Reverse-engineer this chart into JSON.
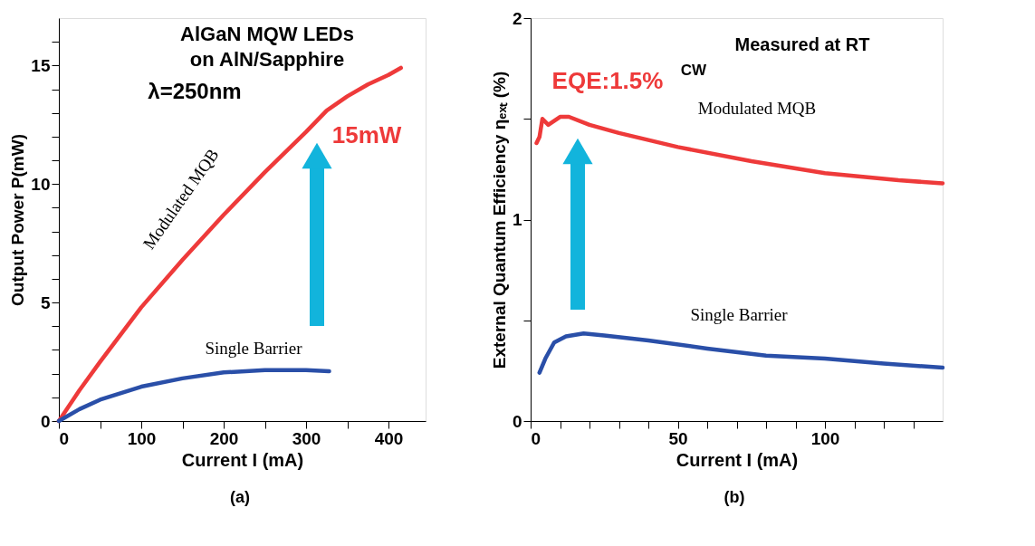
{
  "chart_data": [
    {
      "type": "line",
      "xlabel": "Current I  (mA)",
      "ylabel": "Output Power P(mW)",
      "xlim": [
        0,
        445
      ],
      "ylim": [
        0,
        17
      ],
      "xticks": [
        0,
        {
          "value": 50,
          "label": null
        },
        100,
        {
          "value": 150,
          "label": null
        },
        200,
        {
          "value": 250,
          "label": null
        },
        300,
        {
          "value": 350,
          "label": null
        },
        400
      ],
      "yticks": [
        0,
        {
          "value": 1,
          "label": null
        },
        {
          "value": 2,
          "label": null
        },
        {
          "value": 3,
          "label": null
        },
        {
          "value": 4,
          "label": null
        },
        5,
        {
          "value": 6,
          "label": null
        },
        {
          "value": 7,
          "label": null
        },
        {
          "value": 8,
          "label": null
        },
        {
          "value": 9,
          "label": null
        },
        10,
        {
          "value": 11,
          "label": null
        },
        {
          "value": 12,
          "label": null
        },
        {
          "value": 13,
          "label": null
        },
        {
          "value": 14,
          "label": null
        },
        15,
        {
          "value": 16,
          "label": null
        }
      ],
      "grid": false,
      "legend": false,
      "marker": "none",
      "line_style": "solid",
      "series": [
        {
          "name": "Modulated MQB",
          "color": "#ee3a3a",
          "x": [
            0,
            25,
            50,
            100,
            150,
            200,
            250,
            300,
            325,
            350,
            375,
            400,
            415
          ],
          "values": [
            0,
            1.3,
            2.5,
            4.8,
            6.8,
            8.7,
            10.5,
            12.2,
            13.1,
            13.7,
            14.2,
            14.6,
            14.9
          ]
        },
        {
          "name": "Single Barrier",
          "color": "#2a4fa8",
          "x": [
            0,
            25,
            50,
            100,
            150,
            200,
            250,
            300,
            328
          ],
          "values": [
            0,
            0.5,
            0.9,
            1.45,
            1.8,
            2.05,
            2.15,
            2.15,
            2.1
          ]
        }
      ],
      "annotations": [
        "AlGaN MQW LEDs",
        "on AlN/Sapphire",
        "λ=250nm",
        "15mW",
        "(a)"
      ]
    },
    {
      "type": "line",
      "xlabel": "Current I (mA)",
      "ylabel": "External Quantum Efficiency ηₑₓₜ (%)",
      "xlim": [
        0,
        140
      ],
      "ylim": [
        0,
        2
      ],
      "xticks": [
        0,
        {
          "value": 10,
          "label": null
        },
        {
          "value": 20,
          "label": null
        },
        {
          "value": 30,
          "label": null
        },
        {
          "value": 40,
          "label": null
        },
        50,
        {
          "value": 60,
          "label": null
        },
        {
          "value": 70,
          "label": null
        },
        {
          "value": 80,
          "label": null
        },
        {
          "value": 90,
          "label": null
        },
        100,
        {
          "value": 110,
          "label": null
        },
        {
          "value": 120,
          "label": null
        },
        {
          "value": 130,
          "label": null
        }
      ],
      "yticks": [
        0,
        {
          "value": 0.5,
          "label": null
        },
        1,
        {
          "value": 1.5,
          "label": null
        },
        2
      ],
      "grid": false,
      "legend": false,
      "marker": "none",
      "line_style": "solid",
      "series": [
        {
          "name": "Modulated MQB",
          "color": "#ee3a3a",
          "x": [
            2,
            3,
            4,
            6,
            10,
            13,
            20,
            30,
            50,
            75,
            100,
            125,
            140
          ],
          "values": [
            1.38,
            1.41,
            1.5,
            1.47,
            1.51,
            1.51,
            1.47,
            1.43,
            1.36,
            1.29,
            1.23,
            1.195,
            1.18
          ]
        },
        {
          "name": "Single Barrier",
          "color": "#2a4fa8",
          "x": [
            3,
            5,
            8,
            12,
            18,
            25,
            40,
            60,
            80,
            100,
            120,
            140
          ],
          "values": [
            0.24,
            0.31,
            0.39,
            0.42,
            0.435,
            0.425,
            0.4,
            0.36,
            0.325,
            0.31,
            0.285,
            0.265
          ]
        }
      ],
      "annotations": [
        "Measured at RT",
        "EQE:1.5%",
        "CW",
        "(b)"
      ]
    }
  ]
}
